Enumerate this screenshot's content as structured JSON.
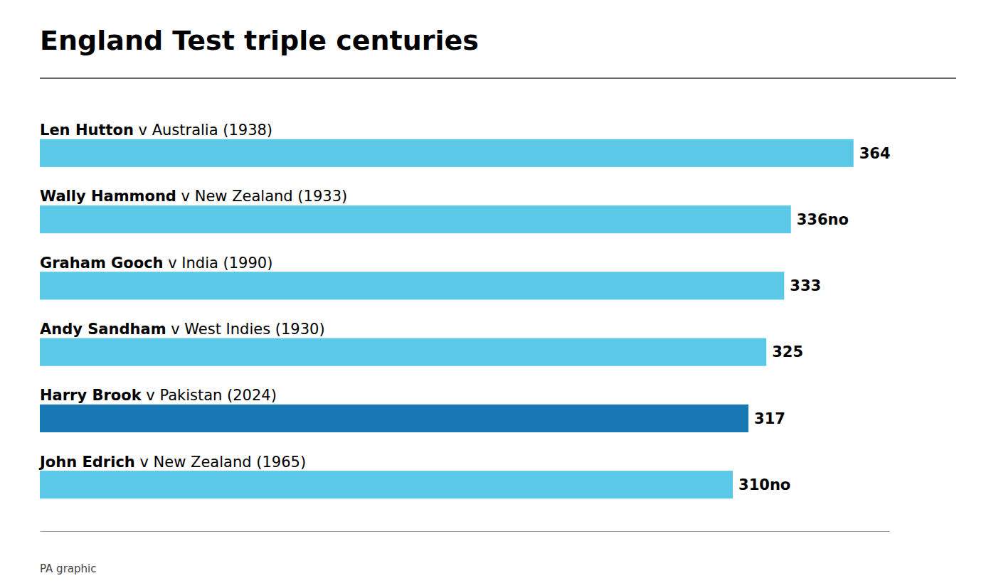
{
  "chart_data": {
    "type": "bar",
    "orientation": "horizontal",
    "title": "England Test triple centuries",
    "categories": [
      "Len Hutton v Australia (1938)",
      "Wally Hammond v New Zealand (1933)",
      "Graham Gooch v India (1990)",
      "Andy Sandham v West Indies (1930)",
      "Harry Brook v Pakistan (2024)",
      "John Edrich v New Zealand (1965)"
    ],
    "values": [
      364,
      336,
      333,
      325,
      317,
      310
    ],
    "value_labels": [
      "364",
      "336no",
      "333",
      "325",
      "317",
      "310no"
    ],
    "colors": [
      "#5BC8E8",
      "#5BC8E8",
      "#5BC8E8",
      "#5BC8E8",
      "#1878B4",
      "#5BC8E8"
    ],
    "xlim": [
      0,
      380
    ],
    "data_labels": true,
    "tick_labels": false,
    "grid": false,
    "annotations": [
      "PA graphic"
    ]
  }
}
